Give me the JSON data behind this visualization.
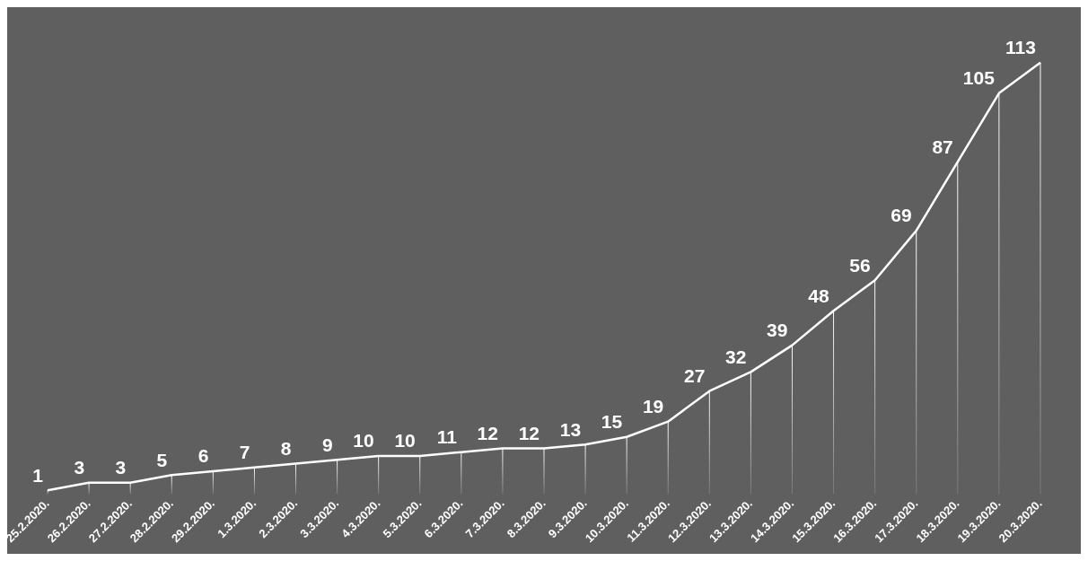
{
  "chart_data": {
    "type": "line",
    "categories": [
      "25.2.2020.",
      "26.2.2020.",
      "27.2.2020.",
      "28.2.2020.",
      "29.2.2020.",
      "1.3.2020.",
      "2.3.2020.",
      "3.3.2020.",
      "4.3.2020.",
      "5.3.2020.",
      "6.3.2020.",
      "7.3.2020.",
      "8.3.2020.",
      "9.3.2020.",
      "10.3.2020.",
      "11.3.2020.",
      "12.3.2020.",
      "13.3.2020.",
      "14.3.2020.",
      "15.3.2020.",
      "16.3.2020.",
      "17.3.2020.",
      "18.3.2020.",
      "19.3.2020.",
      "20.3.2020."
    ],
    "values": [
      1,
      3,
      3,
      5,
      6,
      7,
      8,
      9,
      10,
      10,
      11,
      12,
      12,
      13,
      15,
      19,
      27,
      32,
      39,
      48,
      56,
      69,
      87,
      105,
      113
    ],
    "color": "#ffffff",
    "data_labels": true,
    "grid": "x",
    "legend": false,
    "line_style": "solid",
    "tick_labels": "x"
  }
}
